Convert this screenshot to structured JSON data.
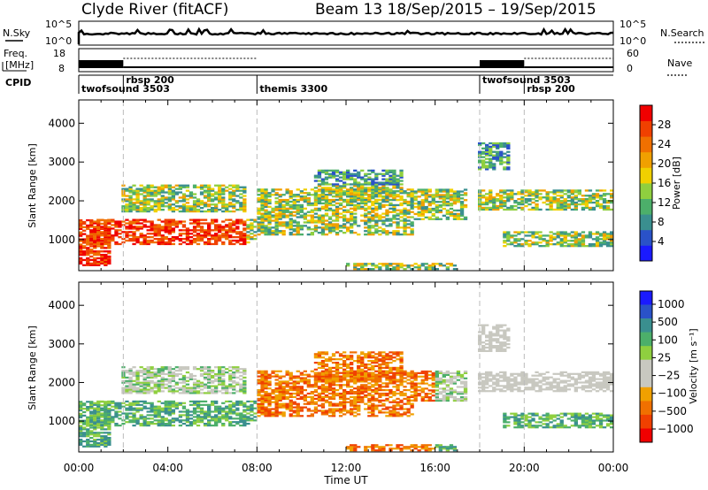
{
  "header": {
    "station": "Clyde River (fitACF)",
    "beam_date": "Beam 13  18/Sep/2015 – 19/Sep/2015"
  },
  "top_panels": {
    "nsky_label": "N.Sky",
    "nsky_ticks": [
      "10^5",
      "10^0"
    ],
    "nsearch_label": "N.Search",
    "nsearch_ticks": [
      "10^5",
      "10^0"
    ],
    "freq_label_1": "Freq.",
    "freq_label_2": "[MHz]",
    "freq_ticks": [
      "18",
      "8"
    ],
    "nave_label": "Nave",
    "nave_ticks": [
      "60",
      "0"
    ],
    "cpid_label": "CPID"
  },
  "cpid_segments": [
    {
      "start_hour": 0.0,
      "name": "twofsound 3503",
      "row": 1
    },
    {
      "start_hour": 2.0,
      "name": "rbsp 200",
      "row": 0
    },
    {
      "start_hour": 8.0,
      "name": "themis 3300",
      "row": 1
    },
    {
      "start_hour": 18.0,
      "name": "twofsound 3503",
      "row": 0
    },
    {
      "start_hour": 20.0,
      "name": "rbsp 200",
      "row": 1
    }
  ],
  "colors": {
    "power": [
      "#1a1aff",
      "#2a52c8",
      "#3a8f8f",
      "#4caf6a",
      "#8fcf3f",
      "#f0d000",
      "#f0a000",
      "#f07000",
      "#f04000",
      "#f00000"
    ],
    "velocity": [
      "#f00000",
      "#f04000",
      "#f07000",
      "#f0a000",
      "#c8c8c0",
      "#c8c8c0",
      "#8fcf3f",
      "#4caf6a",
      "#3a8f8f",
      "#2a52c8",
      "#1a1aff"
    ]
  },
  "chart_data": [
    {
      "type": "heatmap",
      "name": "power",
      "ylabel": "Slant Range [km]",
      "yticks": [
        "1000",
        "2000",
        "3000",
        "4000"
      ],
      "ylim": [
        200,
        4600
      ],
      "xlim": [
        0,
        24
      ],
      "colorbar_label": "Power [dB]",
      "colorbar_ticks": [
        "4",
        "8",
        "12",
        "16",
        "20",
        "24",
        "28"
      ],
      "colorbar_range": [
        0,
        32
      ]
    },
    {
      "type": "heatmap",
      "name": "velocity",
      "ylabel": "Slant Range [km]",
      "yticks": [
        "1000",
        "2000",
        "3000",
        "4000"
      ],
      "ylim": [
        200,
        4600
      ],
      "xlim": [
        0,
        24
      ],
      "xticks": [
        "00:00",
        "04:00",
        "08:00",
        "12:00",
        "16:00",
        "20:00",
        "00:00"
      ],
      "xlabel": "Time UT",
      "colorbar_label": "Velocity [m s⁻¹]",
      "colorbar_ticks": [
        "1000",
        "500",
        "100",
        "25",
        "−25",
        "−100",
        "−500",
        "−1000"
      ]
    }
  ]
}
